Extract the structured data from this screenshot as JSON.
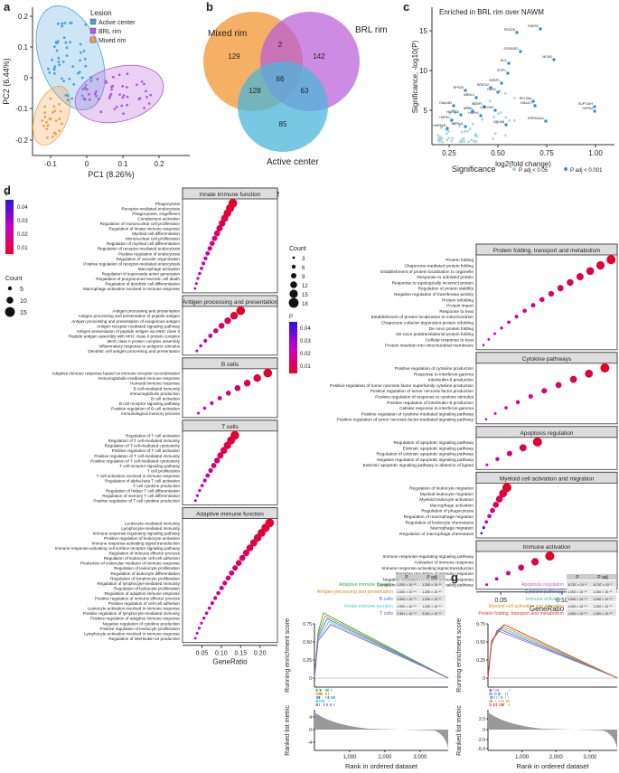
{
  "panel_letters": [
    "a",
    "b",
    "c",
    "d",
    "e",
    "f",
    "g"
  ],
  "pca": {
    "xlabel": "PC1 (8.26%)",
    "ylabel": "PC2 (6.44%)",
    "legend_title": "Lesion",
    "xticks": [
      "-0.1",
      "0",
      "0.1",
      "0.2"
    ],
    "yticks": [
      "-0.2",
      "-0.1",
      "0",
      "0.1",
      "0.2"
    ],
    "groups": [
      {
        "name": "Active center",
        "color": "#4ba3d9"
      },
      {
        "name": "BRL rim",
        "color": "#b25ad9"
      },
      {
        "name": "Mixed rim",
        "color": "#f0a04b"
      }
    ]
  },
  "venn": {
    "labels": [
      "Mixed rim",
      "BRL rim",
      "Active center"
    ],
    "counts": [
      "129",
      "142",
      "85",
      "2",
      "128",
      "63",
      "66"
    ]
  },
  "volcano": {
    "title": "Enriched in BRL rim over NAWM",
    "xlabel": "log2(fold change)",
    "ylabel": "Significance, -log10(P)",
    "xticks": [
      "0.25",
      "0.50",
      "0.75",
      "1.00"
    ],
    "yticks": [
      "5",
      "10",
      "15"
    ],
    "legend": {
      "title": "Significance",
      "a": "P adj < 0.05",
      "b": "P adj < 0.001"
    },
    "labels": [
      "EARS2",
      "PDCD5",
      "MCM2",
      "SCRN3E1",
      "STIP1",
      "DDX1",
      "NCL",
      "SPATS2",
      "SSRP1",
      "MBNL2",
      "RPS26",
      "SSBP1",
      "DNAJB3",
      "HSPA4",
      "SUPT16H",
      "DNAJC7",
      "RPL35A",
      "HSP90AA1",
      "HSPE1",
      "HSPA4L",
      "HSPH1",
      "CRYAB",
      "CACYBP",
      "NFIA",
      "HSPA1A",
      "HSPA1B",
      "HSPA5",
      "DNAJA4",
      "PFDN5"
    ]
  },
  "dotd": {
    "sections": [
      {
        "title": "Innate immune function",
        "terms": [
          "Phagocytosis",
          "Receptor-mediated endocytosis",
          "Phagocytosis, engulfment",
          "Complement activation",
          "Regulation of mononuclear cell proliferation",
          "Regulation of innate immune response",
          "Myeloid cell differentiation",
          "Mononuclear cell proliferation",
          "Regulation of myeloid cell differentiation",
          "Regulation of receptor-mediated endocytosis",
          "Positive regulation of endocytosis",
          "Regulation of vacuole organization",
          "Positive regulation of receptor-mediated endocytosis",
          "Macrophage activation",
          "Regulation of superoxide anion generation",
          "Regulation of programmed necrotic cell death",
          "Regulation of dendritic cell differentiation",
          "Macrophage activation involved in immune response"
        ]
      },
      {
        "title": "Antigen processing and presentation",
        "terms": [
          "Antigen processing and presentation",
          "Antigen processing and presentation of peptide antigen",
          "Antigen processing and presentation of exogenous antigen",
          "Antigen receptor-mediated signaling pathway",
          "Antigen presentation of peptide antigen via MHC class II",
          "Peptide antigen assembly with MHC class II protein complex",
          "MHC class II protein complex assembly",
          "Inflammatory response to antigenic stimulus",
          "Dendritic cell antigen processing and presentation"
        ]
      },
      {
        "title": "B cells",
        "terms": [
          "Adaptive immune response based on immune receptor recombination",
          "Immunoglobulin-mediated immune response",
          "Humoral immune response",
          "B cell-mediated immunity",
          "Immunoglobulin production",
          "B cell activation",
          "B cell receptor signaling pathway",
          "Positive regulation of B cell activation",
          "Immunological memory process"
        ]
      },
      {
        "title": "T cells",
        "terms": [
          "Regulation of T cell activation",
          "Regulation of T cell-mediated immunity",
          "Regulation of T cell-mediated cytotoxicity",
          "Positive regulation of T cell activation",
          "Positive regulation of T cell-mediated immunity",
          "Positive regulation of T cell-mediated cytotoxicity",
          "T cell receptor signaling pathway",
          "T cell proliferation",
          "T cell activation involved in immune response",
          "Regulation of alpha-beta T cell activation",
          "T cell cytokine production",
          "Regulation of helper T cell differentiation",
          "Regulation of memory T cell differentiation",
          "Positive regulation of T cell cytokine production"
        ]
      },
      {
        "title": "Adaptive immune function",
        "terms": [
          "Leukocyte-mediated immunity",
          "Lymphocyte-mediated immunity",
          "Immune response-regulating signaling pathway",
          "Positive regulation of leukocyte activation",
          "Immune response-activating signal transduction",
          "Immune response-activating cell surface receptor signaling pathway",
          "Regulation of immune effector process",
          "Regulation of leukocyte cell-cell adhesion",
          "Production of molecular mediator of immune response",
          "Regulation of leukocyte proliferation",
          "Regulation of leukocyte differentiation",
          "Regulation of lymphocyte proliferation",
          "Regulation of lymphocyte-mediated immunity",
          "Regulation of leukocyte proliferation",
          "Regulation of adaptive immune response",
          "Positive regulation of immune effector process",
          "Positive regulation of cell-cell adhesion",
          "Leukocyte activation involved in immune response",
          "Positive regulation of lymphocyte-mediated immunity",
          "Positive regulation of adaptive immune response",
          "Negative regulation of cytokine production",
          "Positive regulation of leukocyte proliferation",
          "Lymphocyte activation involved in immune response",
          "Regulation of interleukin-10 production"
        ]
      }
    ],
    "xlabel": "GeneRatio",
    "xticks": [
      "0.05",
      "0.10",
      "0.15",
      "0.20"
    ],
    "padj_title": "P adj",
    "padj_ticks": [
      "0.04",
      "0.03",
      "0.02",
      "0.01"
    ],
    "count_title": "Count",
    "count_ticks": [
      "5",
      "10",
      "15"
    ]
  },
  "dote": {
    "sections": [
      {
        "title": "Protein folding, transport and metabolism",
        "terms": [
          "Protein folding",
          "Chaperone-mediated protein folding",
          "Establishment of protein localization to organelle",
          "Response to unfolded protein",
          "Response to topologically incorrect protein",
          "Regulation of protein stability",
          "Negative regulation of transferase activity",
          "Protein refolding",
          "Protein import",
          "Response to heat",
          "Establishment of protein localization to mitochondrion",
          "Chaperone cofactor-dependent protein refolding",
          "De novo protein folding",
          "De novo posttranslational protein folding",
          "Cellular response to heat",
          "Protein insertion into mitochondrial membrane"
        ]
      },
      {
        "title": "Cytokine pathways",
        "terms": [
          "Positive regulation of cytokine production",
          "Response to interferon-gamma",
          "Interleukin-8 production",
          "Positive regulation of tumor necrosis factor superfamily cytokine production",
          "Positive regulation of tumor necrosis factor production",
          "Positive regulation of response to cytokine stimulus",
          "Positive regulation of interleukin-8 production",
          "Cellular response to interferon-gamma",
          "Positive regulation of cytokine-mediated signaling pathway",
          "Positive regulation of tumor necrosis factor-mediated signaling pathway"
        ]
      },
      {
        "title": "Apoptosis regulation",
        "terms": [
          "Regulation of apoptotic signaling pathway",
          "Extrinsic apoptotic signaling pathway",
          "Regulation of extrinsic apoptotic signaling pathway",
          "Negative regulation of apoptotic signaling pathway",
          "Extrinsic apoptotic signaling pathway in absence of ligand"
        ]
      },
      {
        "title": "Myeloid cell activation and migration",
        "terms": [
          "Regulation of leukocyte migration",
          "Myeloid leukocyte migration",
          "Myeloid leukocyte activation",
          "Macrophage activation",
          "Regulation of phagocytosis",
          "Regulation of macrophage migration",
          "Regulation of leukocyte chemotaxis",
          "Macrophage migration",
          "Regulation of macrophage chemotaxis"
        ]
      },
      {
        "title": "Immune activation",
        "terms": [
          "Immune response-regulating signaling pathway",
          "Activation of immune response",
          "Immune response-activating signal transduction",
          "Negative regulation of immune response",
          "Negative regulation of innate immune response",
          "Complement receptor-mediated signaling pathway"
        ]
      }
    ],
    "xlabel": "GeneRatio",
    "xticks": [
      "0.05",
      "0.10"
    ],
    "padj_title": "P adj",
    "padj_ticks": [
      "0.04",
      "0.03",
      "0.02",
      "0.01"
    ],
    "count_title": "Count",
    "count_ticks": [
      "3",
      "6",
      "9",
      "12",
      "15",
      "18"
    ]
  },
  "gsea_f": {
    "ylab": "Running enrichment score",
    "rank_label": "Ranked list metric",
    "xlabel": "Rank in ordered dataset",
    "xticks": [
      "1,000",
      "2,000",
      "3,000"
    ],
    "yticks": [
      "0",
      "0.25",
      "0.50",
      "0.75"
    ],
    "rticks": [
      "4",
      "0",
      "-4"
    ],
    "col_p": "P",
    "col_padj": "P adj",
    "rows": [
      {
        "name": "Adaptive immune function",
        "color": "#2bb24c",
        "p": "1.000 × 10⁻¹⁰",
        "padj": "1.250 × 10⁻¹⁰"
      },
      {
        "name": "Antigen processing and presentation",
        "color": "#d18a1a",
        "p": "1.000 × 10⁻¹⁰",
        "padj": "1.250 × 10⁻¹⁰"
      },
      {
        "name": "B cells",
        "color": "#3f78d0",
        "p": "1.000 × 10⁻¹⁰",
        "padj": "1.250 × 10⁻¹⁰"
      },
      {
        "name": "Innate immune function",
        "color": "#3fd0d0",
        "p": "1.000 × 10⁻¹⁰",
        "padj": "1.250 × 10⁻¹⁰"
      },
      {
        "name": "T cells",
        "color": "#8a4fcf",
        "p": "3.361 × 10⁻¹⁰",
        "padj": "3.361 × 10⁻¹⁰"
      }
    ]
  },
  "gsea_g": {
    "ylab": "Running enrichment score",
    "rank_label": "Ranked list metric",
    "xlabel": "Rank in ordered dataset",
    "xticks": [
      "1,000",
      "2,000",
      "3,000"
    ],
    "yticks": [
      "0",
      "0.25",
      "0.50",
      "0.75"
    ],
    "rticks": [
      "2.5",
      "0",
      "-2.5",
      "-5.0"
    ],
    "col_p": "P",
    "col_padj": "P adj",
    "rows": [
      {
        "name": "Apoptosis regulation",
        "color": "#c05ad0",
        "p": "8.757 × 10⁻⁸",
        "padj": "8.757 × 10⁻⁸"
      },
      {
        "name": "Cytokine pathways",
        "color": "#3f78d0",
        "p": "1.000 × 10⁻¹⁰",
        "padj": "1.250 × 10⁻¹⁰"
      },
      {
        "name": "Immune activation",
        "color": "#3fc0b0",
        "p": "1.000 × 10⁻¹⁰",
        "padj": "1.250 × 10⁻¹⁰"
      },
      {
        "name": "Myeloid cell activation and migration",
        "color": "#d1951a",
        "p": "1.000 × 10⁻¹⁰",
        "padj": "1.250 × 10⁻¹⁰"
      },
      {
        "name": "Protein folding, transport and metabolism",
        "color": "#d04a2a",
        "p": "1.000 × 10⁻¹⁰",
        "padj": "1.250 × 10⁻¹⁰"
      }
    ]
  }
}
